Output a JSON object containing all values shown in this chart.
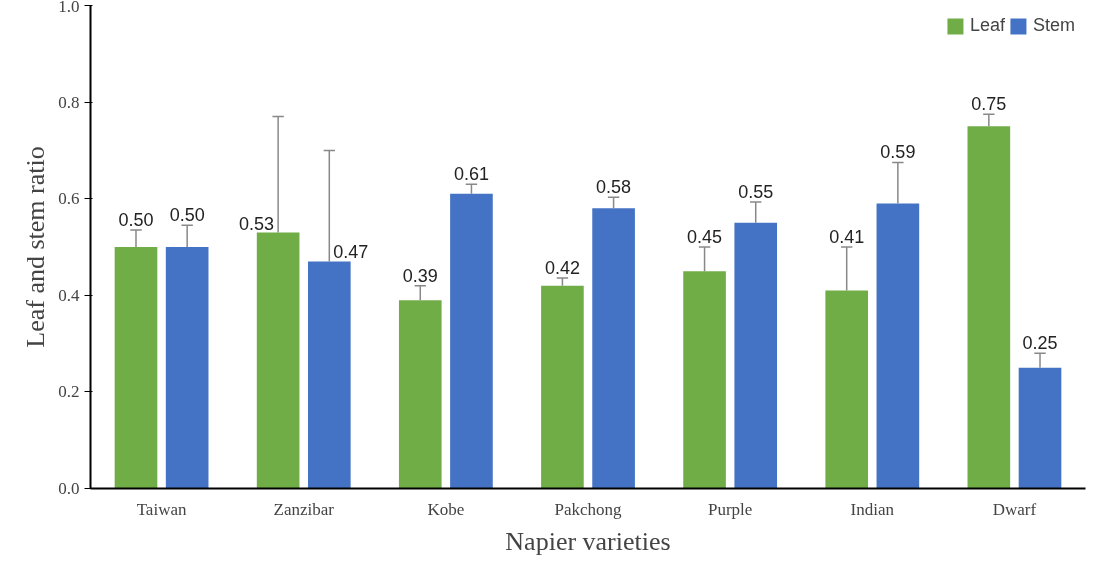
{
  "chart_data": {
    "type": "bar",
    "xlabel": "Napier varieties",
    "ylabel": "Leaf and stem ratio",
    "categories": [
      "Taiwan",
      "Zanzibar",
      "Kobe",
      "Pakchong",
      "Purple",
      "Indian",
      "Dwarf"
    ],
    "series": [
      {
        "name": "Leaf",
        "color": "#70ad47",
        "values": [
          0.5,
          0.53,
          0.39,
          0.42,
          0.45,
          0.41,
          0.75
        ],
        "value_labels": [
          "0.50",
          "0.53",
          "0.39",
          "0.42",
          "0.45",
          "0.41",
          "0.75"
        ],
        "errors": [
          [
            0.5,
            0.535
          ],
          [
            0.53,
            0.77
          ],
          [
            0.39,
            0.42
          ],
          [
            0.42,
            0.436
          ],
          [
            0.45,
            0.5
          ],
          [
            0.41,
            0.5
          ],
          [
            0.75,
            0.775
          ]
        ]
      },
      {
        "name": "Stem",
        "color": "#4472c4",
        "values": [
          0.5,
          0.47,
          0.61,
          0.58,
          0.55,
          0.59,
          0.25
        ],
        "value_labels": [
          "0.50",
          "0.47",
          "0.61",
          "0.58",
          "0.55",
          "0.59",
          "0.25"
        ],
        "errors": [
          [
            0.5,
            0.545
          ],
          [
            0.47,
            0.7
          ],
          [
            0.61,
            0.63
          ],
          [
            0.58,
            0.603
          ],
          [
            0.55,
            0.593
          ],
          [
            0.59,
            0.675
          ],
          [
            0.25,
            0.28
          ]
        ]
      }
    ],
    "ylim": [
      0,
      1.0
    ],
    "yticks": [
      {
        "value": 0,
        "label": "0.0"
      },
      {
        "value": 0.2,
        "label": "0.2"
      },
      {
        "value": 0.4,
        "label": "0.4"
      },
      {
        "value": 0.6,
        "label": "0.6"
      },
      {
        "value": 0.8,
        "label": "0.8"
      },
      {
        "value": 1.0,
        "label": "1.0"
      }
    ],
    "grid": false,
    "legend": "top right"
  }
}
